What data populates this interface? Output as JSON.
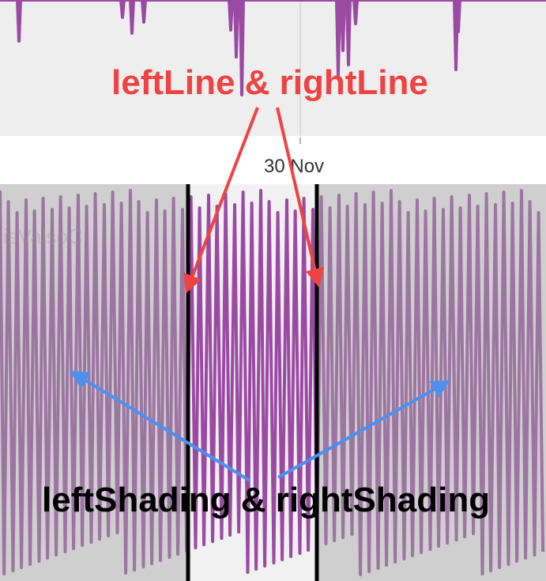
{
  "chart_data": {
    "type": "line",
    "x_tick_label": "30 Nov",
    "annotations": {
      "lines_label": "leftLine & rightLine",
      "shading_label": "leftShading & rightShading"
    }
  },
  "colors": {
    "series": "#9b4aa4",
    "series_dark": "#7a3183",
    "plot_bg": "#eeeeee",
    "shading": "#a0a0a0",
    "selection_bg": "#f1f1f1",
    "handle_line": "#000000",
    "annotation_red": "#ef4242",
    "annotation_blue": "#4c90f0",
    "annotation_black": "#000000"
  }
}
